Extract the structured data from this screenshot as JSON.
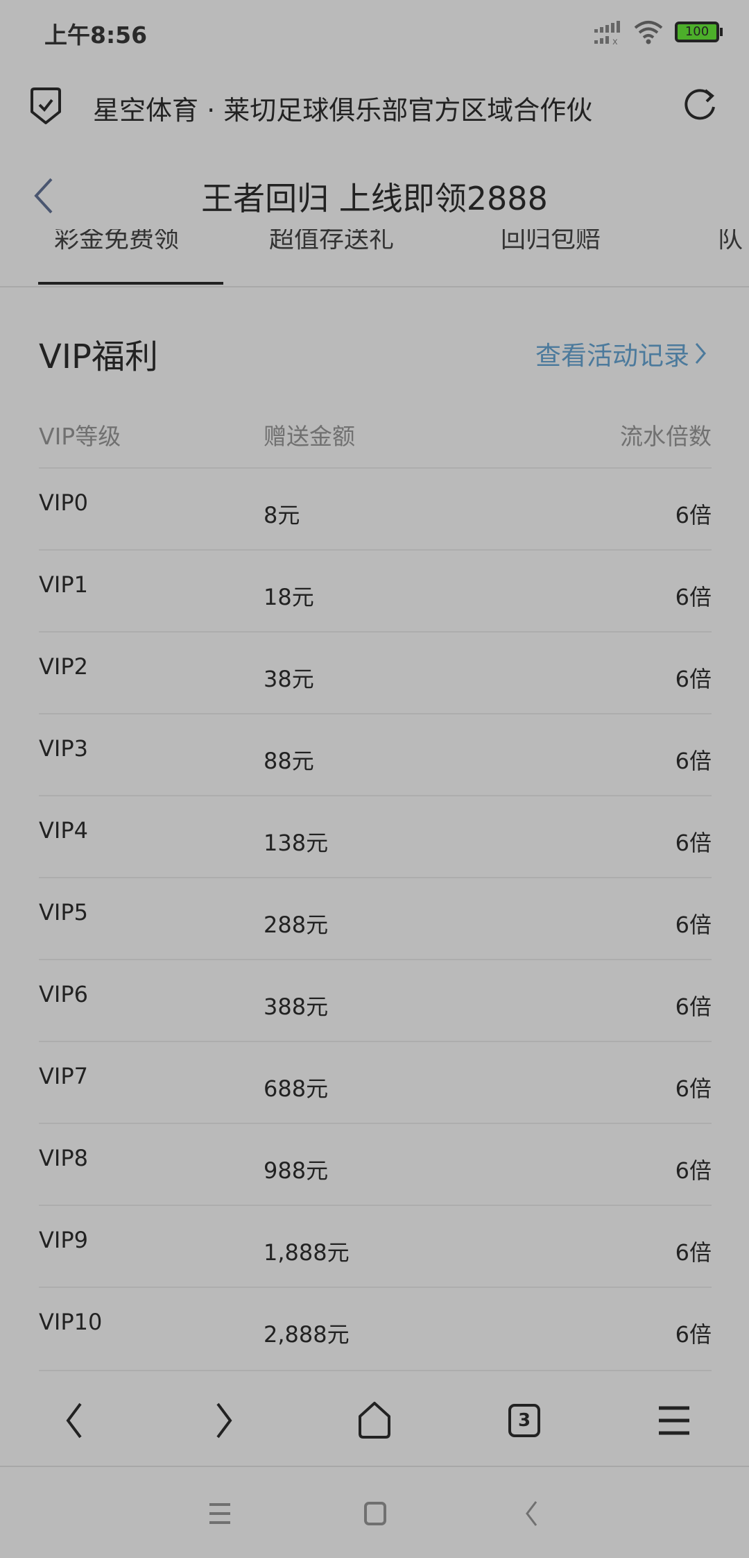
{
  "status_bar": {
    "time": "上午8:56",
    "battery": "100"
  },
  "url_bar": {
    "title": "星空体育 · 莱切足球俱乐部官方区域合作伙"
  },
  "header": {
    "title": "王者回归 上线即领2888"
  },
  "tabs": [
    {
      "label": "彩金免费领"
    },
    {
      "label": "超值存送礼"
    },
    {
      "label": "回归包赔"
    },
    {
      "label": "队"
    }
  ],
  "section": {
    "title": "VIP福利",
    "link": "查看活动记录"
  },
  "table": {
    "headers": [
      "VIP等级",
      "赠送金额",
      "流水倍数"
    ],
    "rows": [
      {
        "level": "VIP0",
        "amount": "8元",
        "multiple": "6倍"
      },
      {
        "level": "VIP1",
        "amount": "18元",
        "multiple": "6倍"
      },
      {
        "level": "VIP2",
        "amount": "38元",
        "multiple": "6倍"
      },
      {
        "level": "VIP3",
        "amount": "88元",
        "multiple": "6倍"
      },
      {
        "level": "VIP4",
        "amount": "138元",
        "multiple": "6倍"
      },
      {
        "level": "VIP5",
        "amount": "288元",
        "multiple": "6倍"
      },
      {
        "level": "VIP6",
        "amount": "388元",
        "multiple": "6倍"
      },
      {
        "level": "VIP7",
        "amount": "688元",
        "multiple": "6倍"
      },
      {
        "level": "VIP8",
        "amount": "988元",
        "multiple": "6倍"
      },
      {
        "level": "VIP9",
        "amount": "1,888元",
        "multiple": "6倍"
      },
      {
        "level": "VIP10",
        "amount": "2,888元",
        "multiple": "6倍"
      }
    ]
  },
  "browser_nav": {
    "tab_count": "3"
  },
  "colors": {
    "background": "#bababa",
    "link": "#4c7a9c",
    "battery": "#4caf2a"
  }
}
